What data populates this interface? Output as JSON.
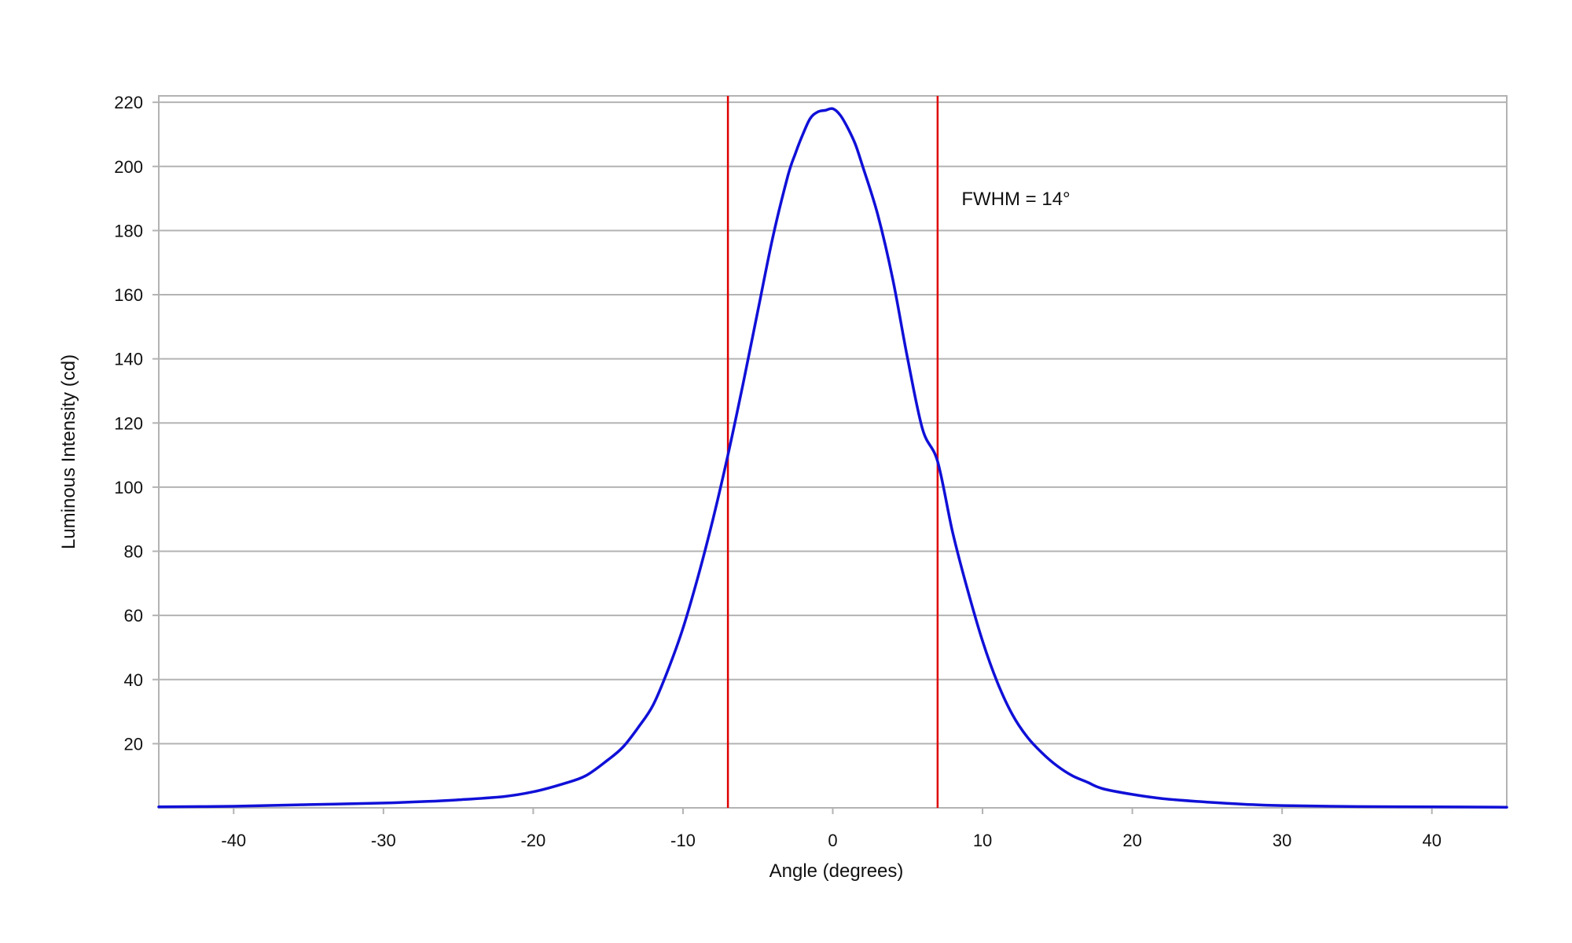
{
  "chart_data": {
    "type": "line",
    "title": "",
    "xlabel": "Angle (degrees)",
    "ylabel": "Luminous Intensity (cd)",
    "xlim": [
      -45,
      45
    ],
    "ylim": [
      0,
      222
    ],
    "xticks": [
      -40,
      -30,
      -20,
      -10,
      0,
      10,
      20,
      30,
      40
    ],
    "yticks": [
      20,
      40,
      60,
      80,
      100,
      120,
      140,
      160,
      180,
      200,
      220
    ],
    "grid": {
      "horizontal": true,
      "vertical": false
    },
    "legend": "none",
    "series": [
      {
        "color": "#1010d8",
        "x": [
          -45,
          -40,
          -35,
          -30,
          -27,
          -25,
          -22,
          -20,
          -18,
          -16.5,
          -15,
          -14,
          -13,
          -12,
          -11,
          -10,
          -9,
          -8,
          -7,
          -6,
          -5,
          -4,
          -3,
          -2.5,
          -2,
          -1.5,
          -1,
          -0.5,
          0,
          0.5,
          1,
          1.5,
          2,
          3,
          4,
          5,
          6,
          7,
          8,
          9,
          10,
          11,
          12,
          13,
          14,
          15,
          16,
          17,
          18,
          20,
          22,
          25,
          28,
          30,
          35,
          40,
          45
        ],
        "y": [
          0.3,
          0.5,
          1,
          1.5,
          2,
          2.5,
          3.5,
          5,
          7.5,
          10,
          15,
          19,
          25,
          32,
          43,
          56,
          72,
          90,
          110,
          132,
          155,
          178,
          197,
          204,
          210,
          215,
          217,
          217.5,
          218,
          216,
          212,
          207,
          200,
          185,
          165,
          140,
          118,
          108,
          86,
          68,
          52,
          39,
          29,
          22,
          17,
          13,
          10,
          8,
          6,
          4.2,
          2.9,
          1.8,
          1,
          0.7,
          0.4,
          0.3,
          0.2
        ]
      }
    ],
    "vertical_lines": {
      "x": [
        -7,
        7
      ],
      "color": "#e00000"
    },
    "annotations": [
      {
        "text": "FWHM = 14°",
        "x": 8.6,
        "y": 188
      }
    ]
  },
  "colors": {
    "gridline": "#b3b3b3",
    "frame": "#b3b3b3",
    "curve": "#1010d8",
    "marker_line": "#e00000"
  }
}
